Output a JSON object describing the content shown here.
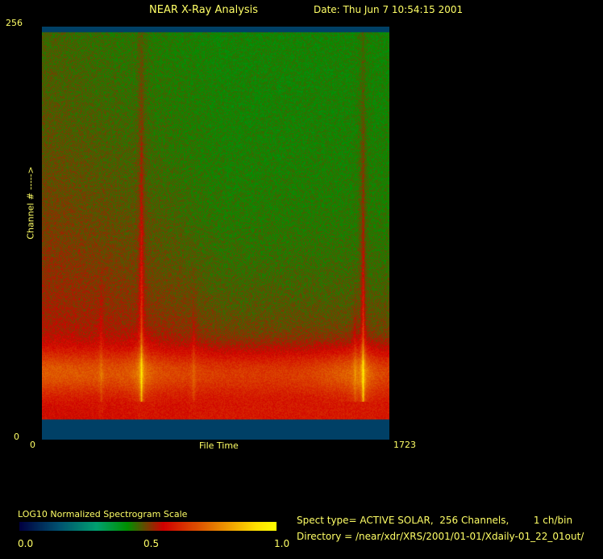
{
  "header": {
    "title": "NEAR X-Ray Analysis",
    "date": "Date: Thu Jun  7 10:54:15 2001"
  },
  "chart_data": {
    "type": "heatmap",
    "xlabel": "File Time",
    "ylabel": "Channel # ----->",
    "xlim": [
      0,
      1723
    ],
    "ylim": [
      0,
      256
    ],
    "x_ticks": [
      "0",
      "1723"
    ],
    "y_ticks": [
      "0",
      "256"
    ],
    "features": {
      "flare_spikes_file_time": [
        492,
        1591
      ],
      "weaker_spikes_file_time": [
        292,
        751,
        1551
      ],
      "peak_channel": 42
    },
    "colorbar": {
      "title": "LOG10 Normalized Spectrogram Scale",
      "ticks": [
        "0.0",
        "0.5",
        "1.0"
      ],
      "colors": [
        "#000040",
        "#005070",
        "#00a070",
        "#009000",
        "#d00000",
        "#e06000",
        "#ffe000",
        "#ffff00"
      ]
    }
  },
  "info": {
    "spect_type": "Spect type= ACTIVE SOLAR,  256 Channels,        1 ch/bin",
    "directory": "Directory = /near/xdr/XRS/2001/01-01/Xdaily-01_22_01out/"
  }
}
